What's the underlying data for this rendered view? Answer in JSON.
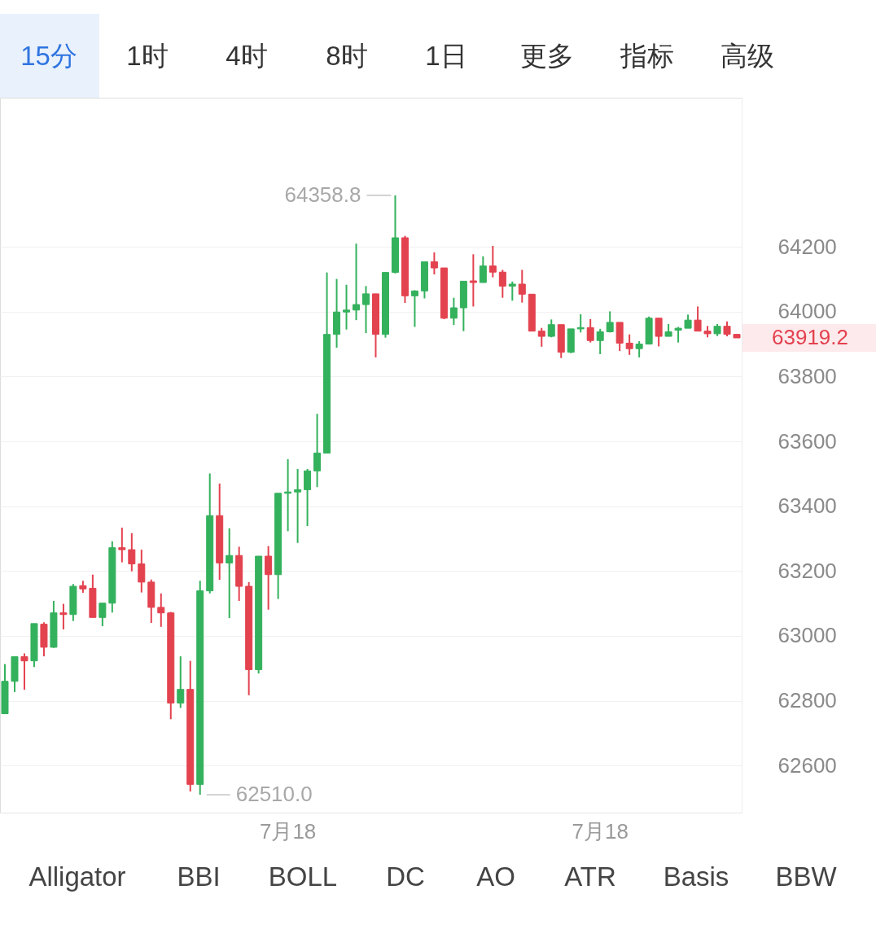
{
  "chart_data": {
    "type": "candlestick",
    "categories": [
      null,
      null,
      null,
      null,
      null,
      null,
      null,
      null,
      null,
      null,
      null,
      null,
      null,
      null,
      null,
      null,
      null,
      null,
      null,
      null,
      null,
      null,
      null,
      null,
      null,
      null,
      null,
      null,
      null,
      "7月18",
      null,
      null,
      null,
      null,
      null,
      null,
      null,
      null,
      null,
      null,
      null,
      null,
      null,
      null,
      null,
      null,
      null,
      null,
      null,
      null,
      null,
      null,
      null,
      null,
      null,
      null,
      null,
      null,
      null,
      null,
      null,
      "7月18",
      null,
      null,
      null,
      null,
      null,
      null,
      null,
      null,
      null,
      null,
      null,
      null,
      null,
      null
    ],
    "ohlc": [
      [
        62760,
        62913,
        62760,
        62860
      ],
      [
        62860,
        62936,
        62827,
        62936
      ],
      [
        62936,
        62946,
        62834,
        62923
      ],
      [
        62923,
        63038,
        62904,
        63038
      ],
      [
        63036,
        63042,
        62937,
        62965
      ],
      [
        62965,
        63108,
        62963,
        63071
      ],
      [
        63071,
        63099,
        63020,
        63066
      ],
      [
        63066,
        63160,
        63046,
        63153
      ],
      [
        63155,
        63170,
        63133,
        63145
      ],
      [
        63147,
        63189,
        63057,
        63057
      ],
      [
        63057,
        63101,
        63030,
        63101
      ],
      [
        63101,
        63292,
        63072,
        63272
      ],
      [
        63272,
        63334,
        63227,
        63266
      ],
      [
        63266,
        63317,
        63199,
        63222
      ],
      [
        63222,
        63266,
        63134,
        63166
      ],
      [
        63166,
        63174,
        63040,
        63088
      ],
      [
        63088,
        63131,
        63028,
        63071
      ],
      [
        63071,
        63074,
        62743,
        62793
      ],
      [
        62793,
        62937,
        62778,
        62835
      ],
      [
        62835,
        62923,
        62520,
        62542
      ],
      [
        62542,
        63170,
        62510.0,
        63139
      ],
      [
        63139,
        63501,
        63131,
        63371
      ],
      [
        63371,
        63470,
        63173,
        63225
      ],
      [
        63225,
        63332,
        63055,
        63248
      ],
      [
        63248,
        63275,
        63108,
        63153
      ],
      [
        63153,
        63166,
        62817,
        62896
      ],
      [
        62896,
        63246,
        62884,
        63246
      ],
      [
        63246,
        63277,
        63081,
        63189
      ],
      [
        63189,
        63440,
        63114,
        63440
      ],
      [
        63440,
        63545,
        63323,
        63444
      ],
      [
        63444,
        63515,
        63287,
        63451
      ],
      [
        63451,
        63515,
        63339,
        63509
      ],
      [
        63509,
        63685,
        63459,
        63564
      ],
      [
        63564,
        64121,
        63564,
        63930
      ],
      [
        63930,
        64101,
        63889,
        63999
      ],
      [
        63999,
        64083,
        63945,
        64005
      ],
      [
        64005,
        64210,
        63974,
        64022
      ],
      [
        64022,
        64079,
        63934,
        64055
      ],
      [
        64055,
        64055,
        63859,
        63930
      ],
      [
        63930,
        64121,
        63920,
        64121
      ],
      [
        64121,
        64358.8,
        64118,
        64228
      ],
      [
        64228,
        64234,
        64027,
        64049
      ],
      [
        64049,
        64066,
        63953,
        64064
      ],
      [
        64064,
        64154,
        64041,
        64154
      ],
      [
        64154,
        64183,
        64115,
        64135
      ],
      [
        64135,
        64135,
        63977,
        63980
      ],
      [
        63980,
        64043,
        63959,
        64012
      ],
      [
        64012,
        64094,
        63940,
        64094
      ],
      [
        64095,
        64177,
        64016,
        64090
      ],
      [
        64090,
        64171,
        64090,
        64141
      ],
      [
        64141,
        64203,
        64106,
        64122
      ],
      [
        64122,
        64129,
        64043,
        64079
      ],
      [
        64079,
        64093,
        64034,
        64085
      ],
      [
        64085,
        64129,
        64028,
        64054
      ],
      [
        64054,
        64054,
        63940,
        63940
      ],
      [
        63940,
        63950,
        63892,
        63924
      ],
      [
        63924,
        63976,
        63921,
        63960
      ],
      [
        63960,
        63960,
        63857,
        63875
      ],
      [
        63875,
        63947,
        63872,
        63947
      ],
      [
        63947,
        63992,
        63936,
        63951
      ],
      [
        63951,
        63977,
        63905,
        63911
      ],
      [
        63911,
        63947,
        63869,
        63938
      ],
      [
        63938,
        64001,
        63936,
        63967
      ],
      [
        63967,
        63967,
        63879,
        63903
      ],
      [
        63903,
        63930,
        63867,
        63886
      ],
      [
        63886,
        63909,
        63859,
        63900
      ],
      [
        63900,
        63985,
        63899,
        63980
      ],
      [
        63980,
        63980,
        63893,
        63924
      ],
      [
        63924,
        63962,
        63924,
        63938
      ],
      [
        63943,
        63953,
        63905,
        63949
      ],
      [
        63949,
        63991,
        63949,
        63974
      ],
      [
        63974,
        64016,
        63940,
        63940
      ],
      [
        63940,
        63956,
        63921,
        63932
      ],
      [
        63932,
        63962,
        63925,
        63955
      ],
      [
        63955,
        63970,
        63924,
        63930
      ],
      [
        63930,
        63930,
        63919.2,
        63919.2
      ]
    ],
    "colors": [
      "#34b15c",
      "#34b15c",
      "#e3424f",
      "#34b15c",
      "#e3424f",
      "#34b15c",
      "#e3424f",
      "#34b15c",
      "#e3424f",
      "#e3424f",
      "#34b15c",
      "#34b15c",
      "#e3424f",
      "#e3424f",
      "#e3424f",
      "#e3424f",
      "#e3424f",
      "#e3424f",
      "#34b15c",
      "#e3424f",
      "#34b15c",
      "#34b15c",
      "#e3424f",
      "#34b15c",
      "#e3424f",
      "#e3424f",
      "#34b15c",
      "#e3424f",
      "#34b15c",
      "#34b15c",
      "#34b15c",
      "#34b15c",
      "#34b15c",
      "#34b15c",
      "#34b15c",
      "#34b15c",
      "#34b15c",
      "#34b15c",
      "#e3424f",
      "#34b15c",
      "#34b15c",
      "#e3424f",
      "#34b15c",
      "#34b15c",
      "#e3424f",
      "#e3424f",
      "#34b15c",
      "#34b15c",
      "#e3424f",
      "#34b15c",
      "#e3424f",
      "#e3424f",
      "#34b15c",
      "#e3424f",
      "#e3424f",
      "#e3424f",
      "#34b15c",
      "#e3424f",
      "#34b15c",
      "#34b15c",
      "#e3424f",
      "#34b15c",
      "#34b15c",
      "#e3424f",
      "#e3424f",
      "#34b15c",
      "#34b15c",
      "#e3424f",
      "#34b15c",
      "#34b15c",
      "#34b15c",
      "#e3424f",
      "#e3424f",
      "#34b15c",
      "#e3424f",
      "#e3424f"
    ],
    "ylim": [
      62455,
      64660
    ],
    "yticks": [
      62600,
      62800,
      63000,
      63200,
      63400,
      63600,
      63800,
      64000,
      64200
    ],
    "grid": "y",
    "annotations": [
      "15分",
      "1时",
      "4时",
      "8时",
      "1日",
      "更多",
      "指标",
      "高级",
      "Alligator",
      "BBI",
      "BOLL",
      "DC",
      "AO",
      "ATR",
      "Basis",
      "BBW",
      "64358.8",
      "62510.0",
      "63919.2"
    ]
  }
}
